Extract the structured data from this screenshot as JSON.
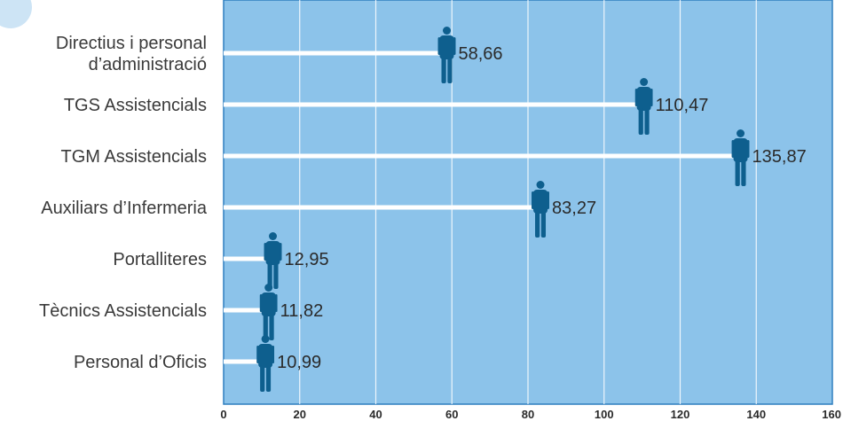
{
  "chart_data": {
    "type": "bar",
    "orientation": "horizontal",
    "categories": [
      [
        "Directius i personal",
        "d’administració"
      ],
      [
        "TGS Assistencials"
      ],
      [
        "TGM Assistencials"
      ],
      [
        "Auxiliars d’Infermeria"
      ],
      [
        "Portalliteres"
      ],
      [
        "Tècnics Assistencials"
      ],
      [
        "Personal d’Oficis"
      ]
    ],
    "values": [
      58.66,
      110.47,
      135.87,
      83.27,
      12.95,
      11.82,
      10.99
    ],
    "value_labels": [
      "58,66",
      "110,47",
      "135,87",
      "83,27",
      "12,95",
      "11,82",
      "10,99"
    ],
    "xlim": [
      0,
      160
    ],
    "x_ticks": [
      "0",
      "20",
      "40",
      "60",
      "80",
      "100",
      "120",
      "140",
      "160"
    ],
    "grid": true,
    "marker": "person-icon",
    "colors": {
      "plot_background": "#8cc3ea",
      "plot_border": "#2f7fbf",
      "grid": "#ffffff",
      "bar": "#ffffff",
      "marker": "#0e5f8e",
      "decor_circle": "#cde4f5"
    }
  }
}
